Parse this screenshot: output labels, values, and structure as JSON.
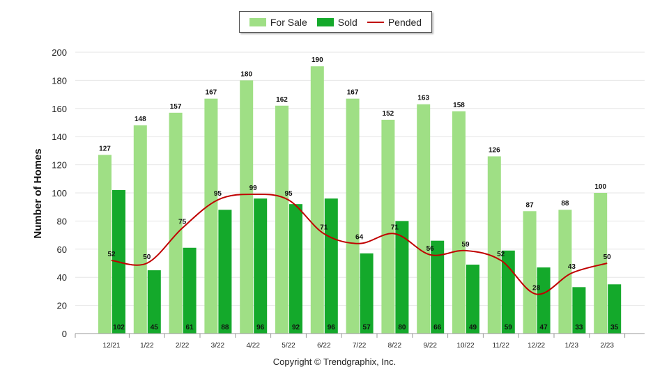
{
  "chart_data": {
    "type": "bar",
    "categories": [
      "12/21",
      "1/22",
      "2/22",
      "3/22",
      "4/22",
      "5/22",
      "6/22",
      "7/22",
      "8/22",
      "9/22",
      "10/22",
      "11/22",
      "12/22",
      "1/23",
      "2/23"
    ],
    "series": [
      {
        "name": "For Sale",
        "type": "bar",
        "color": "#9fdf85",
        "values": [
          127,
          148,
          157,
          167,
          180,
          162,
          190,
          167,
          152,
          163,
          158,
          126,
          87,
          88,
          100
        ]
      },
      {
        "name": "Sold",
        "type": "bar",
        "color": "#14a92b",
        "values": [
          102,
          45,
          61,
          88,
          96,
          92,
          96,
          57,
          80,
          66,
          49,
          59,
          47,
          33,
          35
        ]
      },
      {
        "name": "Pended",
        "type": "line",
        "color": "#c00000",
        "values": [
          52,
          50,
          75,
          95,
          99,
          95,
          71,
          64,
          71,
          56,
          59,
          52,
          28,
          43,
          50
        ]
      }
    ],
    "ylabel": "Number of Homes",
    "xlabel": "",
    "ylim": [
      0,
      200
    ],
    "yticks": [
      0,
      20,
      40,
      60,
      80,
      100,
      120,
      140,
      160,
      180,
      200
    ],
    "grid": true,
    "legend_position": "top-center"
  },
  "legend": {
    "for_sale": "For Sale",
    "sold": "Sold",
    "pended": "Pended",
    "for_sale_color": "#9fdf85",
    "sold_color": "#14a92b",
    "pended_color": "#c00000"
  },
  "footer": {
    "copyright": "Copyright © Trendgraphix, Inc."
  }
}
